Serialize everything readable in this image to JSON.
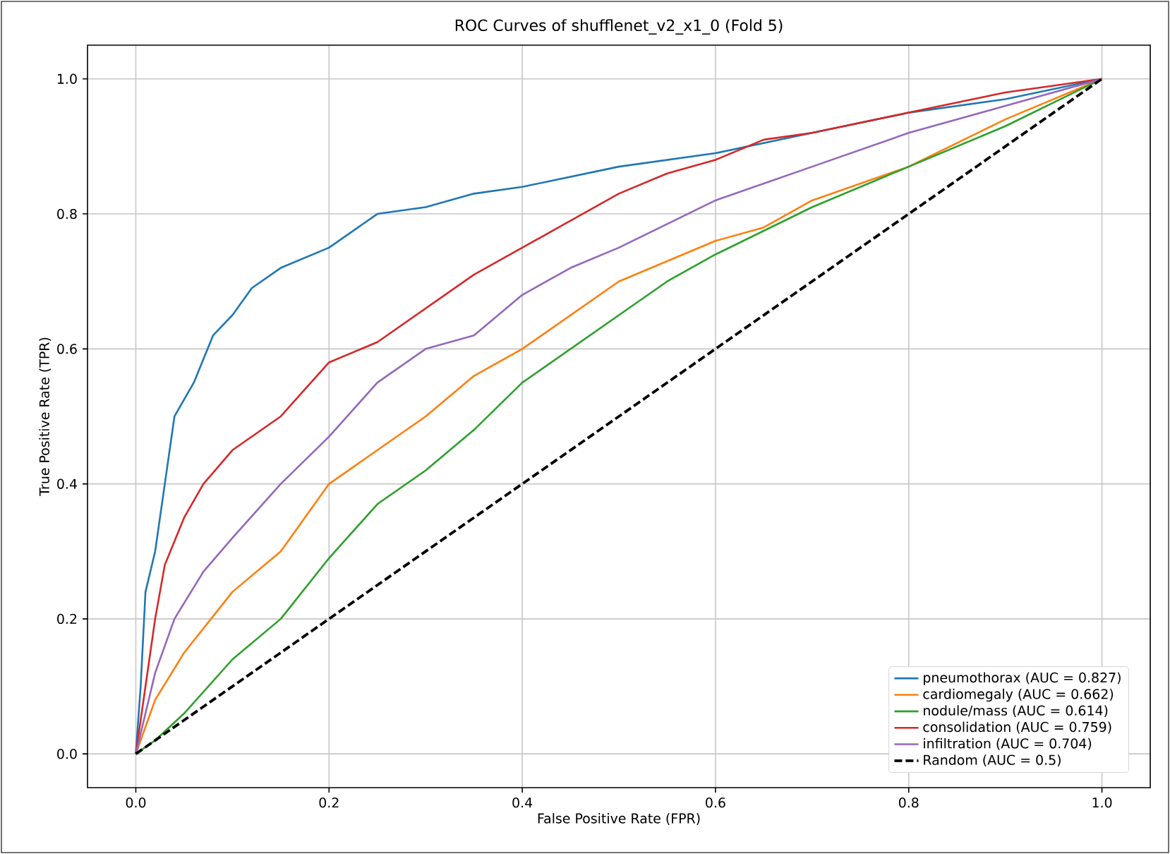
{
  "chart_data": {
    "type": "line",
    "title": "ROC Curves of shufflenet_v2_x1_0 (Fold 5)",
    "xlabel": "False Positive Rate (FPR)",
    "ylabel": "True Positive Rate (TPR)",
    "xlim": [
      -0.05,
      1.05
    ],
    "ylim": [
      -0.05,
      1.05
    ],
    "xticks": [
      {
        "value": 0,
        "label": "0.0"
      },
      0.2,
      0.4,
      0.6,
      0.8,
      {
        "value": 1,
        "label": "1.0"
      }
    ],
    "yticks": [
      {
        "value": 0,
        "label": "0.0"
      },
      0.2,
      0.4,
      0.6,
      0.8,
      {
        "value": 1,
        "label": "1.0"
      }
    ],
    "grid": true,
    "legend": "bottom right",
    "marker": "none",
    "series": [
      {
        "name": "pneumothorax (AUC = 0.827)",
        "color": "#1f77b4",
        "x": [
          0,
          0.005,
          0.01,
          0.02,
          0.03,
          0.04,
          0.06,
          0.08,
          0.1,
          0.12,
          0.15,
          0.2,
          0.25,
          0.3,
          0.35,
          0.4,
          0.5,
          0.6,
          0.7,
          0.8,
          0.9,
          1
        ],
        "values": [
          0,
          0.1,
          0.24,
          0.3,
          0.4,
          0.5,
          0.55,
          0.62,
          0.65,
          0.69,
          0.72,
          0.75,
          0.8,
          0.81,
          0.83,
          0.84,
          0.87,
          0.89,
          0.92,
          0.95,
          0.97,
          1
        ]
      },
      {
        "name": "cardiomegaly (AUC = 0.662)",
        "color": "#ff7f0e",
        "x": [
          0,
          0.01,
          0.02,
          0.05,
          0.1,
          0.15,
          0.2,
          0.25,
          0.3,
          0.35,
          0.4,
          0.45,
          0.5,
          0.55,
          0.6,
          0.65,
          0.7,
          0.8,
          0.9,
          1
        ],
        "values": [
          0,
          0.04,
          0.08,
          0.15,
          0.24,
          0.3,
          0.4,
          0.45,
          0.5,
          0.56,
          0.6,
          0.65,
          0.7,
          0.73,
          0.76,
          0.78,
          0.82,
          0.87,
          0.94,
          1
        ]
      },
      {
        "name": "nodule/mass (AUC = 0.614)",
        "color": "#2ca02c",
        "x": [
          0,
          0.02,
          0.05,
          0.1,
          0.15,
          0.2,
          0.25,
          0.3,
          0.35,
          0.4,
          0.45,
          0.5,
          0.55,
          0.6,
          0.7,
          0.8,
          0.9,
          1
        ],
        "values": [
          0,
          0.02,
          0.06,
          0.14,
          0.2,
          0.29,
          0.37,
          0.42,
          0.48,
          0.55,
          0.6,
          0.65,
          0.7,
          0.74,
          0.81,
          0.87,
          0.93,
          1
        ]
      },
      {
        "name": "consolidation (AUC = 0.759)",
        "color": "#d62728",
        "x": [
          0,
          0.01,
          0.02,
          0.03,
          0.05,
          0.07,
          0.1,
          0.15,
          0.2,
          0.25,
          0.3,
          0.35,
          0.4,
          0.45,
          0.5,
          0.55,
          0.6,
          0.65,
          0.7,
          0.8,
          0.9,
          1
        ],
        "values": [
          0,
          0.1,
          0.2,
          0.28,
          0.35,
          0.4,
          0.45,
          0.5,
          0.58,
          0.61,
          0.66,
          0.71,
          0.75,
          0.79,
          0.83,
          0.86,
          0.88,
          0.91,
          0.92,
          0.95,
          0.98,
          1
        ]
      },
      {
        "name": "infiltration (AUC = 0.704)",
        "color": "#9467bd",
        "x": [
          0,
          0.01,
          0.02,
          0.04,
          0.07,
          0.1,
          0.15,
          0.2,
          0.25,
          0.3,
          0.35,
          0.4,
          0.45,
          0.5,
          0.6,
          0.7,
          0.8,
          0.9,
          1
        ],
        "values": [
          0,
          0.06,
          0.12,
          0.2,
          0.27,
          0.32,
          0.4,
          0.47,
          0.55,
          0.6,
          0.62,
          0.68,
          0.72,
          0.75,
          0.82,
          0.87,
          0.92,
          0.96,
          1
        ]
      },
      {
        "name": "Random (AUC = 0.5)",
        "color": "#000000",
        "line_style": "dashed",
        "x": [
          0,
          1
        ],
        "values": [
          0,
          1
        ]
      }
    ]
  }
}
